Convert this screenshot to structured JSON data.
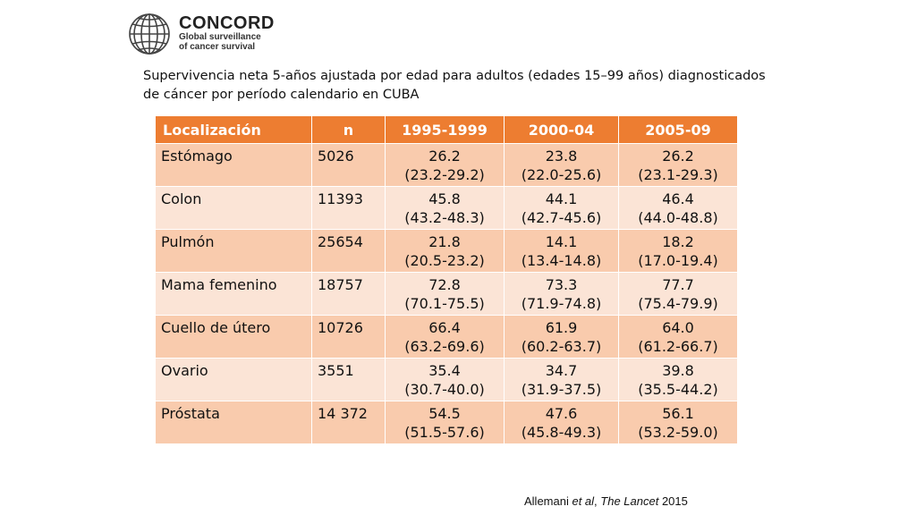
{
  "logo": {
    "title": "CONCORD",
    "line1": "Global surveillance",
    "line2": "of cancer survival"
  },
  "title": "Supervivencia neta 5-años ajustada por edad para adultos (edades 15–99 años) diagnosticados de cáncer por período calendario en CUBA",
  "table": {
    "headers": [
      "Localización",
      "n",
      "1995-1999",
      "2000-04",
      "2005-09"
    ],
    "rows": [
      {
        "site": "Estómago",
        "n": "5026",
        "p1": "26.2",
        "p1ci": "(23.2-29.2)",
        "p2": "23.8",
        "p2ci": "(22.0-25.6)",
        "p3": "26.2",
        "p3ci": "(23.1-29.3)"
      },
      {
        "site": "Colon",
        "n": "11393",
        "p1": "45.8",
        "p1ci": "(43.2-48.3)",
        "p2": "44.1",
        "p2ci": "(42.7-45.6)",
        "p3": "46.4",
        "p3ci": "(44.0-48.8)"
      },
      {
        "site": "Pulmón",
        "n": "25654",
        "p1": "21.8",
        "p1ci": "(20.5-23.2)",
        "p2": "14.1",
        "p2ci": "(13.4-14.8)",
        "p3": "18.2",
        "p3ci": "(17.0-19.4)"
      },
      {
        "site": "Mama femenino",
        "n": "18757",
        "p1": "72.8",
        "p1ci": "(70.1-75.5)",
        "p2": "73.3",
        "p2ci": "(71.9-74.8)",
        "p3": "77.7",
        "p3ci": "(75.4-79.9)"
      },
      {
        "site": "Cuello de útero",
        "n": "10726",
        "p1": "66.4",
        "p1ci": "(63.2-69.6)",
        "p2": "61.9",
        "p2ci": "(60.2-63.7)",
        "p3": "64.0",
        "p3ci": "(61.2-66.7)"
      },
      {
        "site": "Ovario",
        "n": "3551",
        "p1": "35.4",
        "p1ci": "(30.7-40.0)",
        "p2": "34.7",
        "p2ci": "(31.9-37.5)",
        "p3": "39.8",
        "p3ci": "(35.5-44.2)"
      },
      {
        "site": "Próstata",
        "n": "14 372",
        "p1": "54.5",
        "p1ci": "(51.5-57.6)",
        "p2": "47.6",
        "p2ci": "(45.8-49.3)",
        "p3": "56.1",
        "p3ci": "(53.2-59.0)"
      }
    ]
  },
  "citation": {
    "authors": "Allemani ",
    "etal": "et al",
    "sep": ", ",
    "journal": "The Lancet",
    "year": " 2015"
  },
  "colors": {
    "header_bg": "#ed7d31",
    "row_odd": "#f9cbad",
    "row_even": "#fbe4d6"
  }
}
